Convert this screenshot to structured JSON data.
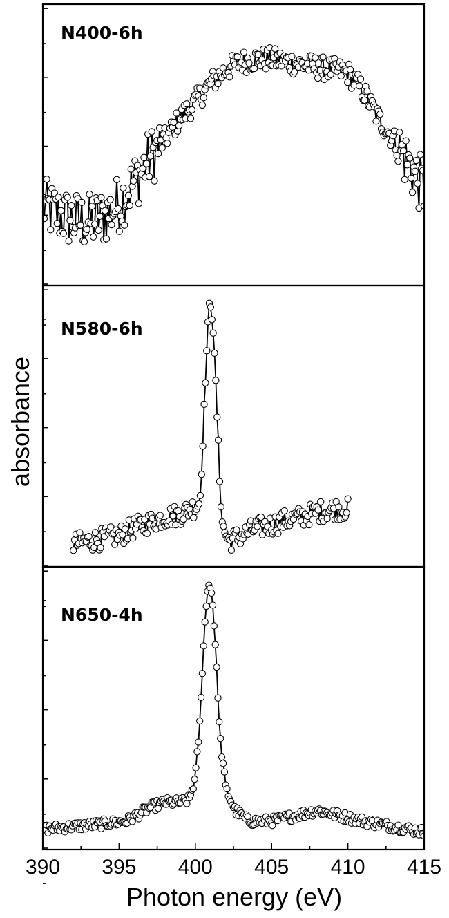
{
  "chart_data": {
    "type": "line",
    "xlabel": "Photon energy (eV)",
    "ylabel": "absorbance",
    "xlim": [
      390,
      415
    ],
    "x_ticks": [
      "390",
      "395",
      "400",
      "405",
      "410",
      "415"
    ],
    "markers": "open circles connected by line",
    "grid": false,
    "legend": "none",
    "panels": [
      {
        "label": "N400-6h",
        "ylim": [
          0,
          1
        ],
        "x_range": [
          390,
          415
        ],
        "profile": [
          [
            390.0,
            0.27
          ],
          [
            391.0,
            0.24
          ],
          [
            392.0,
            0.22
          ],
          [
            393.0,
            0.21
          ],
          [
            394.0,
            0.23
          ],
          [
            395.0,
            0.28
          ],
          [
            396.0,
            0.36
          ],
          [
            397.0,
            0.45
          ],
          [
            398.0,
            0.52
          ],
          [
            399.0,
            0.6
          ],
          [
            400.0,
            0.66
          ],
          [
            401.0,
            0.73
          ],
          [
            402.0,
            0.78
          ],
          [
            403.0,
            0.81
          ],
          [
            404.0,
            0.82
          ],
          [
            405.0,
            0.82
          ],
          [
            406.0,
            0.81
          ],
          [
            407.0,
            0.8
          ],
          [
            408.0,
            0.79
          ],
          [
            409.0,
            0.78
          ],
          [
            410.0,
            0.77
          ],
          [
            411.0,
            0.7
          ],
          [
            412.0,
            0.6
          ],
          [
            413.0,
            0.52
          ],
          [
            414.0,
            0.43
          ],
          [
            415.0,
            0.33
          ]
        ],
        "noise": 0.11
      },
      {
        "label": "N580-6h",
        "ylim": [
          0,
          1
        ],
        "x_range": [
          392,
          410
        ],
        "profile": [
          [
            392.0,
            0.06
          ],
          [
            393.0,
            0.07
          ],
          [
            394.0,
            0.08
          ],
          [
            395.0,
            0.09
          ],
          [
            396.0,
            0.12
          ],
          [
            397.0,
            0.14
          ],
          [
            398.0,
            0.16
          ],
          [
            399.0,
            0.17
          ],
          [
            400.0,
            0.2
          ],
          [
            400.3,
            0.22
          ],
          [
            400.6,
            0.6
          ],
          [
            400.8,
            0.85
          ],
          [
            400.95,
            0.98
          ],
          [
            401.15,
            0.88
          ],
          [
            401.35,
            0.65
          ],
          [
            401.55,
            0.35
          ],
          [
            401.8,
            0.12
          ],
          [
            402.2,
            0.07
          ],
          [
            403.0,
            0.09
          ],
          [
            404.0,
            0.12
          ],
          [
            405.0,
            0.13
          ],
          [
            406.0,
            0.15
          ],
          [
            407.0,
            0.16
          ],
          [
            408.0,
            0.18
          ],
          [
            409.0,
            0.19
          ],
          [
            410.0,
            0.19
          ]
        ],
        "noise": 0.04
      },
      {
        "label": "N650-4h",
        "ylim": [
          0,
          1
        ],
        "x_range": [
          390,
          415
        ],
        "profile": [
          [
            390.0,
            0.05
          ],
          [
            392.0,
            0.06
          ],
          [
            394.0,
            0.07
          ],
          [
            395.5,
            0.08
          ],
          [
            397.0,
            0.13
          ],
          [
            398.0,
            0.15
          ],
          [
            399.0,
            0.15
          ],
          [
            399.6,
            0.16
          ],
          [
            400.0,
            0.24
          ],
          [
            400.3,
            0.45
          ],
          [
            400.6,
            0.8
          ],
          [
            400.85,
            0.97
          ],
          [
            401.1,
            0.92
          ],
          [
            401.35,
            0.7
          ],
          [
            401.6,
            0.4
          ],
          [
            402.0,
            0.2
          ],
          [
            402.6,
            0.12
          ],
          [
            403.5,
            0.08
          ],
          [
            405.0,
            0.08
          ],
          [
            406.5,
            0.1
          ],
          [
            408.0,
            0.12
          ],
          [
            409.5,
            0.1
          ],
          [
            411.0,
            0.08
          ],
          [
            413.0,
            0.06
          ],
          [
            415.0,
            0.04
          ]
        ],
        "noise": 0.018
      }
    ]
  }
}
